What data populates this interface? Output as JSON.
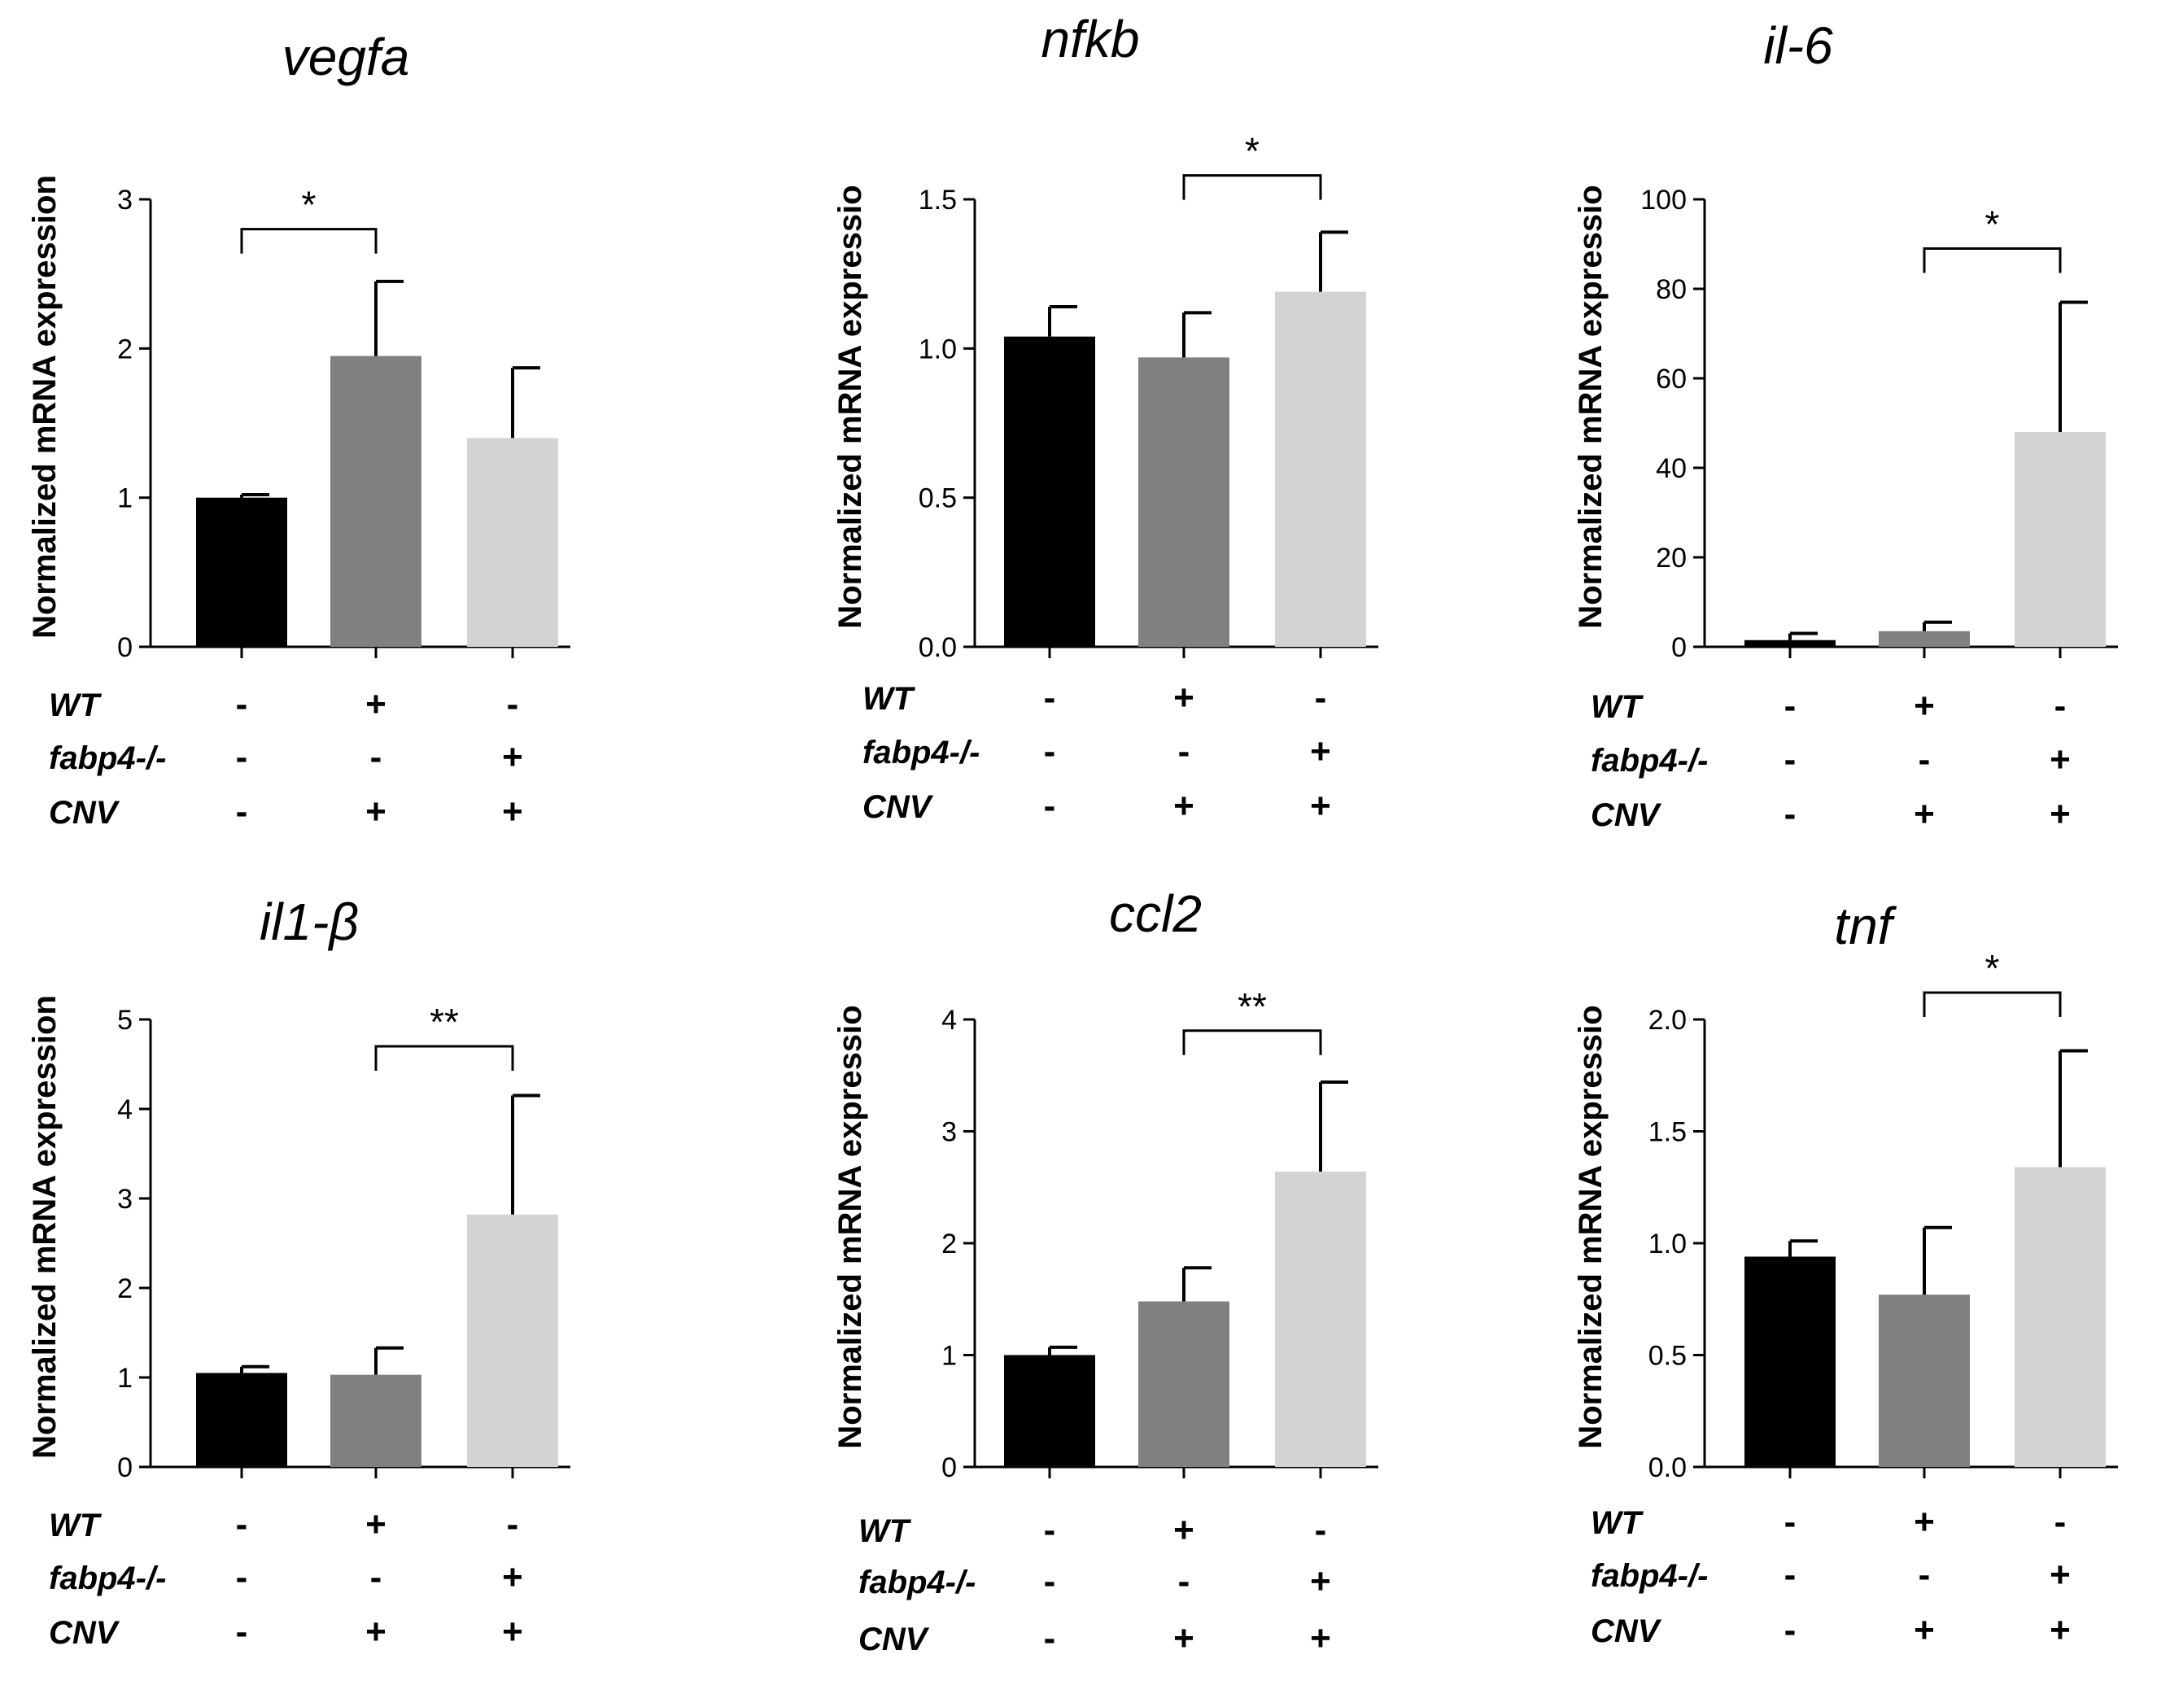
{
  "figure": {
    "condition_rows": [
      "WT",
      "fabp4-/-",
      "CNV"
    ]
  },
  "chart_data": [
    {
      "type": "bar",
      "title": "vegfa",
      "ylabel": "Normalized mRNA expression",
      "ylim": [
        0,
        3
      ],
      "yticks": [
        "0",
        "1",
        "2",
        "3"
      ],
      "values": [
        1.0,
        1.95,
        1.4
      ],
      "errors": [
        0.02,
        0.5,
        0.47
      ],
      "bar_colors": [
        "#000000",
        "#808080",
        "#d3d3d3"
      ],
      "conditions": {
        "WT": [
          "-",
          "+",
          "-"
        ],
        "fabp4-/-": [
          "-",
          "-",
          "+"
        ],
        "CNV": [
          "-",
          "+",
          "+"
        ]
      },
      "significance": {
        "from": 0,
        "to": 1,
        "label": "*",
        "y": 2.8
      }
    },
    {
      "type": "bar",
      "title": "nfkb",
      "ylabel": "Normalized mRNA expressio",
      "ylim": [
        0,
        1.5
      ],
      "yticks": [
        "0.0",
        "0.5",
        "1.0",
        "1.5"
      ],
      "values": [
        1.04,
        0.97,
        1.19
      ],
      "errors": [
        0.1,
        0.15,
        0.2
      ],
      "bar_colors": [
        "#000000",
        "#808080",
        "#d3d3d3"
      ],
      "conditions": {
        "WT": [
          "-",
          "+",
          "-"
        ],
        "fabp4-/-": [
          "-",
          "-",
          "+"
        ],
        "CNV": [
          "-",
          "+",
          "+"
        ]
      },
      "significance": {
        "from": 1,
        "to": 2,
        "label": "*",
        "y": 1.58
      }
    },
    {
      "type": "bar",
      "title": "il-6",
      "ylabel": "Normalized mRNA expressio",
      "ylim": [
        0,
        100
      ],
      "yticks": [
        "0",
        "20",
        "40",
        "60",
        "80",
        "100"
      ],
      "values": [
        1.5,
        3.5,
        48
      ],
      "errors": [
        1.5,
        2.0,
        29
      ],
      "bar_colors": [
        "#000000",
        "#808080",
        "#d3d3d3"
      ],
      "conditions": {
        "WT": [
          "-",
          "+",
          "-"
        ],
        "fabp4-/-": [
          "-",
          "-",
          "+"
        ],
        "CNV": [
          "-",
          "+",
          "+"
        ]
      },
      "significance": {
        "from": 1,
        "to": 2,
        "label": "*",
        "y": 89
      }
    },
    {
      "type": "bar",
      "title": "il1-β",
      "ylabel": "Normalized mRNA expression",
      "ylim": [
        0,
        5
      ],
      "yticks": [
        "0",
        "1",
        "2",
        "3",
        "4",
        "5"
      ],
      "values": [
        1.05,
        1.03,
        2.82
      ],
      "errors": [
        0.07,
        0.3,
        1.33
      ],
      "bar_colors": [
        "#000000",
        "#808080",
        "#d3d3d3"
      ],
      "conditions": {
        "WT": [
          "-",
          "+",
          "-"
        ],
        "fabp4-/-": [
          "-",
          "-",
          "+"
        ],
        "CNV": [
          "-",
          "+",
          "+"
        ]
      },
      "significance": {
        "from": 1,
        "to": 2,
        "label": "**",
        "y": 4.7
      }
    },
    {
      "type": "bar",
      "title": "ccl2",
      "ylabel": "Normalized mRNA expressio",
      "ylim": [
        0,
        4
      ],
      "yticks": [
        "0",
        "1",
        "2",
        "3",
        "4"
      ],
      "values": [
        1.0,
        1.48,
        2.64
      ],
      "errors": [
        0.07,
        0.3,
        0.8
      ],
      "bar_colors": [
        "#000000",
        "#808080",
        "#d3d3d3"
      ],
      "conditions": {
        "WT": [
          "-",
          "+",
          "-"
        ],
        "fabp4-/-": [
          "-",
          "-",
          "+"
        ],
        "CNV": [
          "-",
          "+",
          "+"
        ]
      },
      "significance": {
        "from": 1,
        "to": 2,
        "label": "**",
        "y": 3.9
      }
    },
    {
      "type": "bar",
      "title": "tnf",
      "ylabel": "Normalized mRNA expressio",
      "ylim": [
        0,
        2
      ],
      "yticks": [
        "0.0",
        "0.5",
        "1.0",
        "1.5",
        "2.0"
      ],
      "values": [
        0.94,
        0.77,
        1.34
      ],
      "errors": [
        0.07,
        0.3,
        0.52
      ],
      "bar_colors": [
        "#000000",
        "#808080",
        "#d3d3d3"
      ],
      "conditions": {
        "WT": [
          "-",
          "+",
          "-"
        ],
        "fabp4-/-": [
          "-",
          "-",
          "+"
        ],
        "CNV": [
          "-",
          "+",
          "+"
        ]
      },
      "significance": {
        "from": 1,
        "to": 2,
        "label": "*",
        "y": 2.12
      }
    }
  ]
}
